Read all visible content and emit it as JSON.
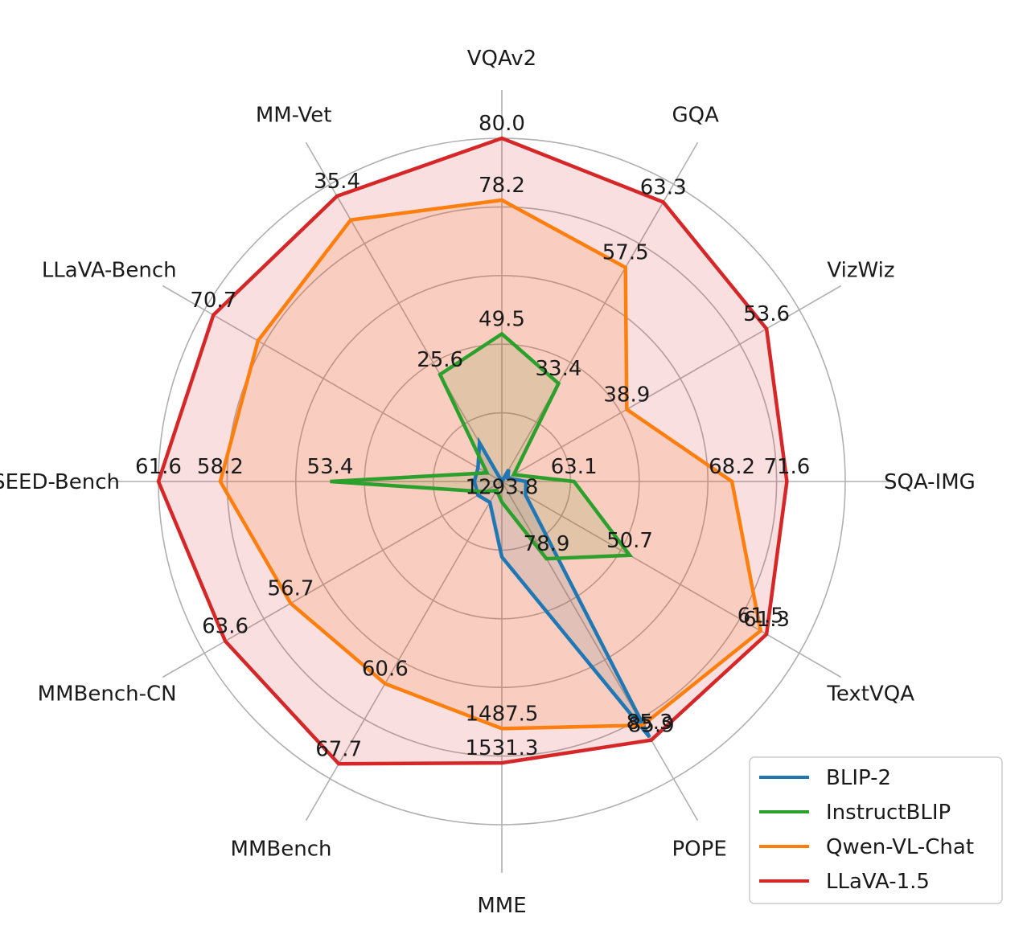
{
  "chart_data": {
    "type": "radar",
    "axes": [
      "VQAv2",
      "GQA",
      "VizWiz",
      "SQA-IMG",
      "TextVQA",
      "POPE",
      "MME",
      "MMBench",
      "MMBench-CN",
      "SEED-Bench",
      "LLaVA-Bench",
      "MM-Vet"
    ],
    "grid": true,
    "legend_position": "bottom-right",
    "fill_alpha": 0.15,
    "series": [
      {
        "name": "BLIP-2",
        "color": "#1f77b4",
        "radius_fraction": [
          0.0,
          0.04,
          0.02,
          0.07,
          0.08,
          0.86,
          0.22,
          0.07,
          0.08,
          0.08,
          0.08,
          0.13
        ],
        "labels": [
          "",
          "",
          "",
          "",
          "",
          "85.3",
          "",
          "",
          "",
          "",
          "",
          ""
        ]
      },
      {
        "name": "InstructBLIP",
        "color": "#2ca02c",
        "radius_fraction": [
          0.43,
          0.33,
          0.04,
          0.21,
          0.43,
          0.26,
          0.06,
          0.03,
          0.06,
          0.5,
          0.05,
          0.36
        ],
        "labels": [
          "49.5",
          "33.4",
          "",
          "63.1",
          "50.7",
          "78.9",
          "1293.8",
          "",
          "",
          "53.4",
          "",
          "25.6"
        ]
      },
      {
        "name": "Qwen-VL-Chat",
        "color": "#ff7f0e",
        "radius_fraction": [
          0.82,
          0.72,
          0.42,
          0.67,
          0.87,
          0.82,
          0.72,
          0.68,
          0.71,
          0.82,
          0.82,
          0.88
        ],
        "labels": [
          "78.2",
          "57.5",
          "38.9",
          "68.2",
          "61.5",
          "",
          "1487.5",
          "60.6",
          "56.7",
          "58.2",
          "",
          ""
        ]
      },
      {
        "name": "LLaVA-1.5",
        "color": "#d62728",
        "radius_fraction": [
          1.0,
          0.94,
          0.89,
          0.83,
          0.89,
          0.87,
          0.82,
          0.95,
          0.93,
          1.0,
          0.97,
          0.96
        ],
        "labels": [
          "80.0",
          "63.3",
          "53.6",
          "71.6",
          "61.3",
          "85.9",
          "1531.3",
          "67.7",
          "63.6",
          "61.6",
          "70.7",
          "35.4"
        ]
      }
    ]
  }
}
